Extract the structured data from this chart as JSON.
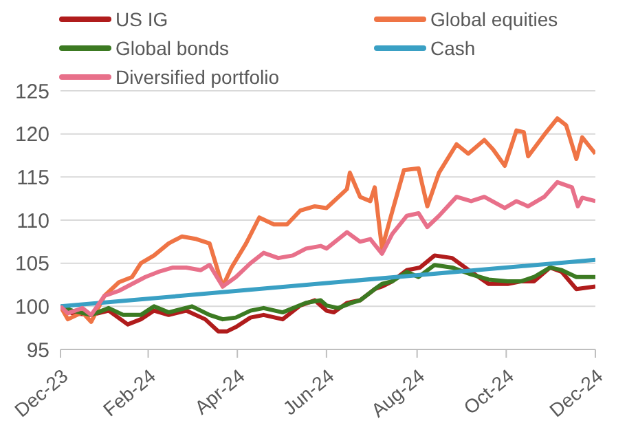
{
  "chart_data": {
    "type": "line",
    "legend": "top",
    "grid": "y",
    "marker": "none",
    "line_style": "solid",
    "xlim": [
      "2023-12-31",
      "2024-12-31"
    ],
    "xticks": [
      {
        "value": "2023-12-31",
        "label": "Dec-23"
      },
      {
        "value": "2024-02-29",
        "label": "Feb-24"
      },
      {
        "value": "2024-04-30",
        "label": "Apr-24"
      },
      {
        "value": "2024-06-30",
        "label": "Jun-24"
      },
      {
        "value": "2024-08-31",
        "label": "Aug-24"
      },
      {
        "value": "2024-10-31",
        "label": "Oct-24"
      },
      {
        "value": "2024-12-31",
        "label": "Dec-24"
      }
    ],
    "ylim": [
      95,
      125
    ],
    "yticks": [
      95,
      100,
      105,
      110,
      115,
      120,
      125
    ],
    "series": [
      {
        "name": "US IG",
        "color": "#b01c1c",
        "x": [
          "2023-12-31",
          "2024-01-08",
          "2024-01-21",
          "2024-02-02",
          "2024-02-15",
          "2024-02-24",
          "2024-03-04",
          "2024-03-14",
          "2024-03-26",
          "2024-04-08",
          "2024-04-17",
          "2024-04-23",
          "2024-04-29",
          "2024-05-09",
          "2024-05-18",
          "2024-05-31",
          "2024-06-12",
          "2024-06-22",
          "2024-06-30",
          "2024-07-05",
          "2024-07-14",
          "2024-07-23",
          "2024-08-02",
          "2024-08-07",
          "2024-08-14",
          "2024-08-24",
          "2024-09-02",
          "2024-09-12",
          "2024-09-24",
          "2024-10-07",
          "2024-10-19",
          "2024-11-01",
          "2024-11-10",
          "2024-11-19",
          "2024-11-30",
          "2024-12-08",
          "2024-12-18",
          "2024-12-31"
        ],
        "values": [
          100,
          99.2,
          99,
          99.5,
          97.9,
          98.5,
          99.5,
          99,
          99.5,
          98.5,
          97.1,
          97.1,
          97.6,
          98.7,
          99,
          98.5,
          100.1,
          100.7,
          99.5,
          99.3,
          100.4,
          100.7,
          102,
          102.3,
          102.9,
          104.2,
          104.5,
          105.9,
          105.6,
          104,
          102.6,
          102.6,
          102.9,
          102.9,
          104.5,
          104,
          102,
          102.3
        ]
      },
      {
        "name": "Global equities",
        "color": "#ef7445",
        "x": [
          "2023-12-31",
          "2024-01-05",
          "2024-01-15",
          "2024-01-21",
          "2024-01-30",
          "2024-02-09",
          "2024-02-18",
          "2024-02-24",
          "2024-03-04",
          "2024-03-14",
          "2024-03-23",
          "2024-04-02",
          "2024-04-11",
          "2024-04-20",
          "2024-04-26",
          "2024-05-06",
          "2024-05-15",
          "2024-05-25",
          "2024-06-03",
          "2024-06-12",
          "2024-06-22",
          "2024-06-30",
          "2024-07-14",
          "2024-07-16",
          "2024-07-23",
          "2024-07-30",
          "2024-08-02",
          "2024-08-07",
          "2024-08-14",
          "2024-08-22",
          "2024-09-01",
          "2024-09-07",
          "2024-09-15",
          "2024-09-27",
          "2024-10-05",
          "2024-10-16",
          "2024-10-22",
          "2024-10-30",
          "2024-11-07",
          "2024-11-12",
          "2024-11-15",
          "2024-11-26",
          "2024-12-05",
          "2024-12-11",
          "2024-12-18",
          "2024-12-22",
          "2024-12-31"
        ],
        "values": [
          100,
          98.5,
          99.3,
          98.2,
          101.2,
          102.8,
          103.4,
          105,
          105.9,
          107.3,
          108.1,
          107.8,
          107.3,
          102.3,
          104.5,
          107.3,
          110.3,
          109.5,
          109.5,
          111.1,
          111.6,
          111.4,
          113.6,
          115.5,
          112.7,
          112.2,
          113.8,
          106.7,
          111,
          115.8,
          116,
          111.6,
          115.5,
          118.8,
          117.7,
          119.3,
          118.2,
          116.3,
          120.4,
          120.2,
          117.4,
          119.9,
          121.8,
          121,
          117.1,
          119.6,
          117.7
        ]
      },
      {
        "name": "Global bonds",
        "color": "#3c7a22",
        "x": [
          "2023-12-31",
          "2024-01-08",
          "2024-01-21",
          "2024-02-02",
          "2024-02-12",
          "2024-02-24",
          "2024-03-04",
          "2024-03-14",
          "2024-03-30",
          "2024-04-11",
          "2024-04-20",
          "2024-04-29",
          "2024-05-09",
          "2024-05-18",
          "2024-05-31",
          "2024-06-16",
          "2024-06-26",
          "2024-06-30",
          "2024-07-08",
          "2024-07-17",
          "2024-07-23",
          "2024-08-02",
          "2024-08-07",
          "2024-08-14",
          "2024-08-24",
          "2024-09-01",
          "2024-09-12",
          "2024-09-24",
          "2024-10-07",
          "2024-10-19",
          "2024-11-01",
          "2024-11-10",
          "2024-11-19",
          "2024-11-30",
          "2024-12-08",
          "2024-12-18",
          "2024-12-31"
        ],
        "values": [
          100,
          99.5,
          99,
          99.8,
          99,
          99,
          100,
          99.3,
          100,
          99,
          98.5,
          98.7,
          99.5,
          99.8,
          99.3,
          100.4,
          100.7,
          100.1,
          99.8,
          100.4,
          100.7,
          102,
          102.6,
          102.9,
          104,
          103.4,
          104.8,
          104.5,
          103.7,
          103.1,
          102.9,
          102.9,
          103.4,
          104.5,
          104.2,
          103.4,
          103.4
        ]
      },
      {
        "name": "Cash",
        "color": "#3aa0c4",
        "x": [
          "2023-12-31",
          "2024-06-30",
          "2024-12-31"
        ],
        "values": [
          100,
          102.7,
          105.4
        ]
      },
      {
        "name": "Diversified portfolio",
        "color": "#e8708a",
        "x": [
          "2023-12-31",
          "2024-01-05",
          "2024-01-15",
          "2024-01-21",
          "2024-01-30",
          "2024-02-09",
          "2024-02-18",
          "2024-02-27",
          "2024-03-07",
          "2024-03-17",
          "2024-03-26",
          "2024-04-05",
          "2024-04-11",
          "2024-04-20",
          "2024-04-29",
          "2024-05-09",
          "2024-05-18",
          "2024-05-28",
          "2024-06-07",
          "2024-06-16",
          "2024-06-26",
          "2024-06-30",
          "2024-07-14",
          "2024-07-23",
          "2024-07-30",
          "2024-08-07",
          "2024-08-14",
          "2024-08-24",
          "2024-09-01",
          "2024-09-07",
          "2024-09-15",
          "2024-09-27",
          "2024-10-07",
          "2024-10-16",
          "2024-10-30",
          "2024-11-07",
          "2024-11-15",
          "2024-11-26",
          "2024-12-05",
          "2024-12-15",
          "2024-12-19",
          "2024-12-22",
          "2024-12-31"
        ],
        "values": [
          100,
          99.2,
          99.8,
          99,
          101.2,
          101.8,
          102.6,
          103.4,
          104,
          104.5,
          104.5,
          104.2,
          104.8,
          102.3,
          103.4,
          105,
          106.2,
          105.6,
          105.9,
          106.7,
          107,
          106.7,
          108.6,
          107.5,
          107.8,
          106.1,
          108.4,
          110.5,
          110.8,
          109.2,
          110.5,
          112.7,
          112.2,
          112.7,
          111.4,
          112.2,
          111.6,
          112.7,
          114.4,
          113.8,
          111.6,
          112.6,
          112.2
        ]
      }
    ]
  }
}
